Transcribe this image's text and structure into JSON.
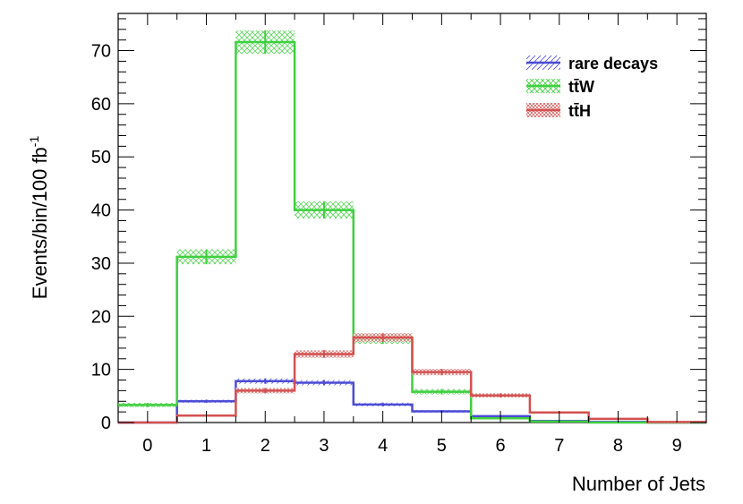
{
  "chart_data": {
    "type": "histogram",
    "xlabel": "Number of Jets",
    "ylabel": "Events/bin/100 fb",
    "ylabel_superscript": "-1",
    "xlim": [
      -0.5,
      9.5
    ],
    "ylim": [
      0,
      77
    ],
    "x_ticks": [
      "0",
      "1",
      "2",
      "3",
      "4",
      "5",
      "6",
      "7",
      "8",
      "9"
    ],
    "y_ticks": [
      "0",
      "10",
      "20",
      "30",
      "40",
      "50",
      "60",
      "70"
    ],
    "x": [
      0,
      1,
      2,
      3,
      4,
      5,
      6,
      7,
      8,
      9
    ],
    "grid": false,
    "legend_position": "top-right",
    "series": [
      {
        "name": "rare decays",
        "color": "#4b4bd6",
        "values": [
          0,
          4.0,
          7.8,
          7.5,
          3.4,
          2.1,
          1.2,
          0.3,
          0.1,
          0
        ],
        "errors": [
          0,
          0.3,
          0.5,
          0.5,
          0.35,
          0.25,
          0.15,
          0.05,
          0.02,
          0
        ]
      },
      {
        "name": "tt̄W",
        "color": "#3fcf3f",
        "values": [
          3.3,
          31.2,
          71.6,
          40.0,
          15.7,
          5.8,
          0.8,
          0.2,
          0,
          0
        ],
        "errors": [
          0.4,
          1.4,
          2.2,
          1.6,
          0.9,
          0.5,
          0.2,
          0.05,
          0,
          0
        ]
      },
      {
        "name": "tt̄H",
        "color": "#d45050",
        "values": [
          0,
          1.3,
          6.0,
          12.9,
          16.0,
          9.5,
          5.1,
          1.9,
          0.7,
          0.1
        ],
        "errors": [
          0,
          0.2,
          0.5,
          0.7,
          0.8,
          0.6,
          0.4,
          0.2,
          0.1,
          0.02
        ]
      }
    ]
  }
}
